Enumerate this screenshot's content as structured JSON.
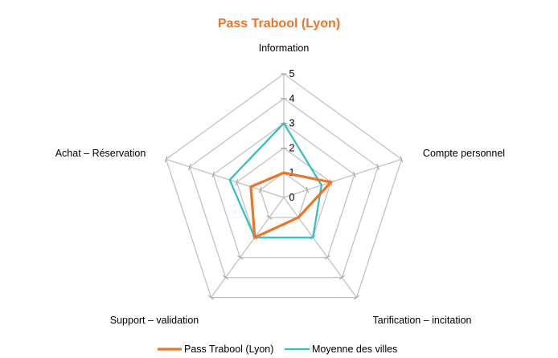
{
  "chart_data": {
    "type": "radar",
    "title": "Pass Trabool (Lyon)",
    "title_color": "#f07322",
    "axes": [
      "Information",
      "Compte personnel",
      "Tarification – incitation",
      "Support – validation",
      "Achat – Réservation"
    ],
    "ticks": [
      "0",
      "1",
      "2",
      "3",
      "4",
      "5"
    ],
    "range": [
      0,
      5
    ],
    "grid": true,
    "grid_color": "#bdbdbd",
    "legend_position": "bottom",
    "series": [
      {
        "name": "Pass Trabool (Lyon)",
        "color": "#f07322",
        "values": [
          1,
          2,
          1,
          2,
          1.4
        ]
      },
      {
        "name": "Moyenne des villes",
        "color": "#2dbfc4",
        "values": [
          3,
          1.6,
          2,
          2,
          2.3
        ]
      }
    ]
  }
}
